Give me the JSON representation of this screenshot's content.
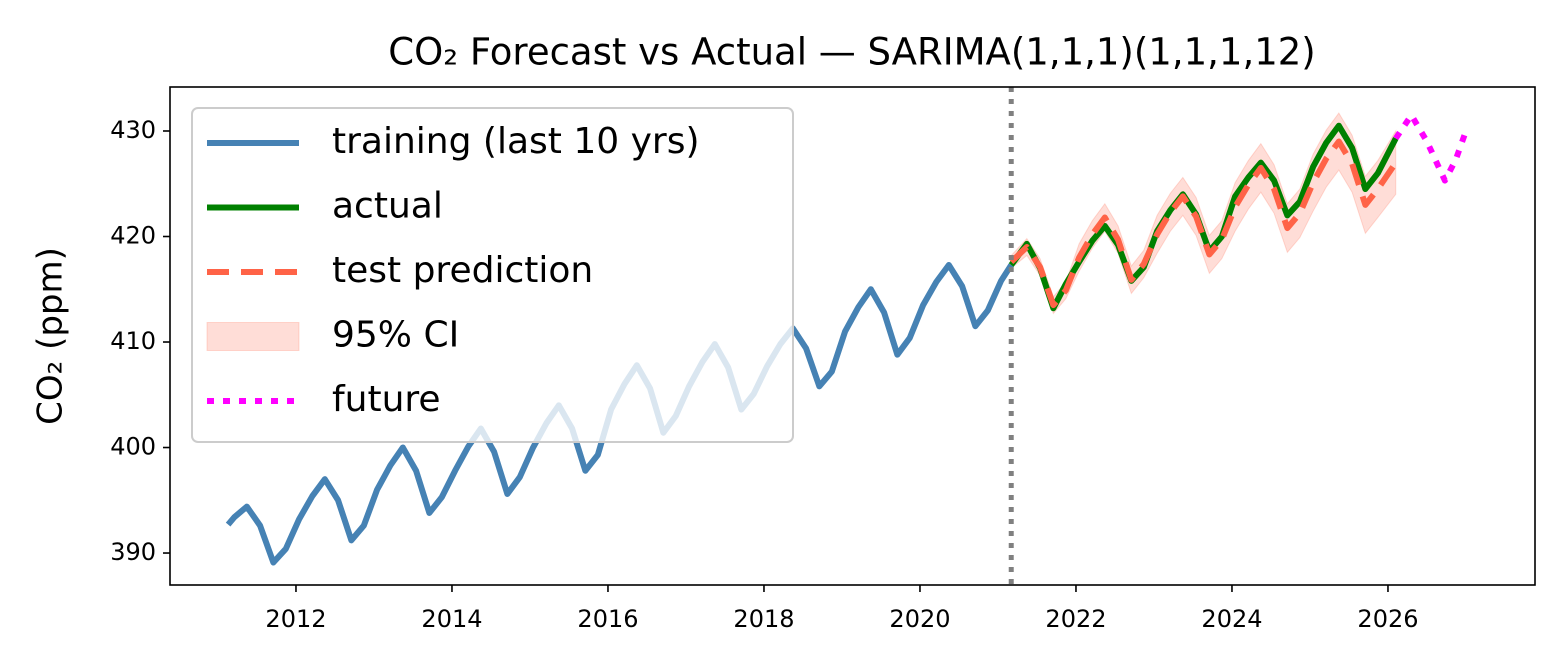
{
  "chart_data": {
    "type": "line",
    "title": "CO₂ Forecast vs Actual — SARIMA(1,1,1)(1,1,1,12)",
    "y_label": "CO₂ (ppm)",
    "xlim": [
      2010.385,
      2027.885
    ],
    "ylim": [
      386.97,
      434.17
    ],
    "xticks": [
      2012,
      2014,
      2016,
      2018,
      2020,
      2022,
      2024,
      2026
    ],
    "yticks": [
      390,
      400,
      410,
      420,
      430
    ],
    "legend": "upper left",
    "split_x": 2021.17,
    "split_color": "#808080",
    "series": [
      {
        "name": "training (last 10 yrs)",
        "color": "#4682b4",
        "dash": "solid",
        "x": [
          2011.13,
          2011.21,
          2011.37,
          2011.54,
          2011.71,
          2011.87,
          2012.04,
          2012.21,
          2012.37,
          2012.54,
          2012.71,
          2012.87,
          2013.04,
          2013.21,
          2013.37,
          2013.54,
          2013.71,
          2013.87,
          2014.04,
          2014.21,
          2014.37,
          2014.54,
          2014.71,
          2014.87,
          2015.04,
          2015.21,
          2015.37,
          2015.54,
          2015.71,
          2015.87,
          2016.04,
          2016.21,
          2016.37,
          2016.54,
          2016.71,
          2016.87,
          2017.04,
          2017.21,
          2017.37,
          2017.54,
          2017.71,
          2017.87,
          2018.04,
          2018.21,
          2018.37,
          2018.54,
          2018.71,
          2018.87,
          2019.04,
          2019.21,
          2019.37,
          2019.54,
          2019.71,
          2019.87,
          2020.04,
          2020.21,
          2020.37,
          2020.54,
          2020.71,
          2020.87,
          2021.04,
          2021.17
        ],
        "values": [
          392.7,
          393.4,
          394.4,
          392.6,
          389.1,
          390.4,
          393.2,
          395.4,
          397.0,
          395.0,
          391.2,
          392.6,
          396.0,
          398.3,
          400.0,
          397.8,
          393.8,
          395.3,
          397.8,
          400.1,
          401.8,
          399.6,
          395.6,
          397.2,
          400.0,
          402.3,
          404.0,
          401.8,
          397.8,
          399.3,
          403.6,
          406.0,
          407.8,
          405.6,
          401.4,
          403.0,
          405.8,
          408.1,
          409.8,
          407.6,
          403.6,
          405.1,
          407.7,
          409.8,
          411.3,
          409.4,
          405.8,
          407.2,
          411.0,
          413.3,
          415.0,
          412.8,
          408.8,
          410.4,
          413.5,
          415.7,
          417.3,
          415.3,
          411.5,
          413.0,
          415.8,
          417.3
        ]
      },
      {
        "name": "actual",
        "color": "#008000",
        "dash": "solid",
        "x": [
          2021.17,
          2021.37,
          2021.54,
          2021.71,
          2021.87,
          2022.04,
          2022.21,
          2022.37,
          2022.54,
          2022.71,
          2022.87,
          2023.04,
          2023.21,
          2023.37,
          2023.54,
          2023.71,
          2023.87,
          2024.04,
          2024.21,
          2024.37,
          2024.54,
          2024.71,
          2024.87,
          2025.04,
          2025.21,
          2025.37,
          2025.54,
          2025.71,
          2025.87,
          2026.1
        ],
        "values": [
          417.3,
          419.3,
          417.0,
          413.2,
          415.5,
          417.6,
          419.6,
          421.0,
          419.2,
          415.8,
          417.1,
          420.5,
          422.5,
          424.0,
          422.1,
          418.6,
          420.0,
          423.8,
          425.6,
          427.0,
          425.3,
          422.0,
          423.3,
          426.6,
          428.9,
          430.5,
          428.4,
          424.5,
          426.0,
          429.3
        ]
      },
      {
        "name": "test prediction",
        "color": "#ff6347",
        "dash": "dashed",
        "x": [
          2021.17,
          2021.37,
          2021.54,
          2021.71,
          2021.87,
          2022.04,
          2022.21,
          2022.37,
          2022.54,
          2022.71,
          2022.87,
          2023.04,
          2023.21,
          2023.37,
          2023.54,
          2023.71,
          2023.87,
          2024.04,
          2024.21,
          2024.37,
          2024.54,
          2024.71,
          2024.87,
          2025.04,
          2025.21,
          2025.37,
          2025.54,
          2025.71,
          2025.87,
          2026.1
        ],
        "values": [
          417.6,
          419.0,
          417.1,
          413.5,
          414.9,
          418.0,
          420.2,
          421.8,
          419.7,
          415.9,
          417.4,
          420.2,
          422.3,
          423.8,
          421.9,
          418.3,
          419.7,
          422.8,
          424.9,
          426.5,
          424.5,
          420.8,
          422.2,
          425.1,
          427.4,
          429.0,
          426.9,
          423.0,
          424.5,
          427.0
        ]
      },
      {
        "name": "95% CI",
        "color": "#ff6347",
        "kind": "area",
        "opacity": 0.22,
        "x": [
          2021.17,
          2021.37,
          2021.54,
          2021.71,
          2021.87,
          2022.04,
          2022.21,
          2022.37,
          2022.54,
          2022.71,
          2022.87,
          2023.04,
          2023.21,
          2023.37,
          2023.54,
          2023.71,
          2023.87,
          2024.04,
          2024.21,
          2024.37,
          2024.54,
          2024.71,
          2024.87,
          2025.04,
          2025.21,
          2025.37,
          2025.54,
          2025.71,
          2025.87,
          2026.1
        ],
        "lower": [
          417.0,
          418.2,
          416.3,
          412.7,
          414.1,
          416.7,
          418.9,
          420.5,
          418.4,
          414.6,
          416.1,
          418.4,
          420.5,
          422.0,
          420.1,
          416.5,
          417.9,
          420.5,
          422.6,
          424.2,
          422.2,
          418.5,
          419.9,
          422.4,
          424.7,
          426.3,
          424.2,
          420.3,
          421.8,
          424.0
        ],
        "upper": [
          418.2,
          419.8,
          417.9,
          414.3,
          415.7,
          419.3,
          421.5,
          423.1,
          421.0,
          417.2,
          418.7,
          422.0,
          424.1,
          425.6,
          423.7,
          420.1,
          421.5,
          425.1,
          427.2,
          428.8,
          426.8,
          423.1,
          424.5,
          427.8,
          430.1,
          431.7,
          429.6,
          425.7,
          427.2,
          430.0
        ]
      },
      {
        "name": "future",
        "color": "#ff00ff",
        "dash": "dotted",
        "x": [
          2026.1,
          2026.3,
          2026.5,
          2026.73,
          2026.87,
          2027.0
        ],
        "values": [
          429.3,
          431.5,
          429.0,
          425.3,
          427.3,
          430.0
        ]
      }
    ]
  }
}
